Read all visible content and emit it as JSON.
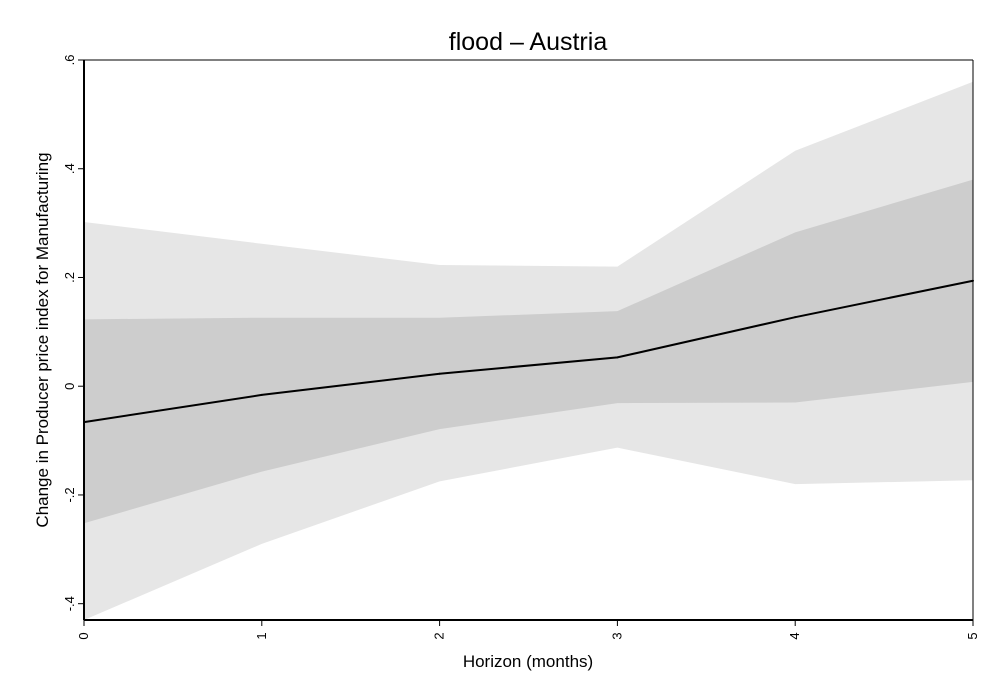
{
  "chart_data": {
    "type": "line",
    "title": "flood – Austria",
    "xlabel": "Horizon (months)",
    "ylabel": "Change in Producer price index for Manufacturing",
    "xlim": [
      0,
      5
    ],
    "ylim": [
      -0.43,
      0.6
    ],
    "x_ticks": [
      0,
      1,
      2,
      3,
      4,
      5
    ],
    "x_tick_labels": [
      "0",
      "1",
      "2",
      "3",
      "4",
      "5"
    ],
    "y_ticks": [
      -0.4,
      -0.2,
      0,
      0.2,
      0.4,
      0.6
    ],
    "y_tick_labels": [
      "-.4",
      "-.2",
      "0",
      ".2",
      ".4",
      ".6"
    ],
    "grid": false,
    "series": [
      {
        "role": "outer-band",
        "color": "#e6e6e6",
        "x": [
          0,
          1,
          2,
          3,
          4,
          5
        ],
        "lower": [
          -0.43,
          -0.29,
          -0.175,
          -0.113,
          -0.18,
          -0.173
        ],
        "upper": [
          0.302,
          0.262,
          0.223,
          0.22,
          0.433,
          0.56
        ]
      },
      {
        "role": "inner-band",
        "color": "#cdcdcd",
        "x": [
          0,
          1,
          2,
          3,
          4,
          5
        ],
        "lower": [
          -0.252,
          -0.157,
          -0.079,
          -0.031,
          -0.03,
          0.008
        ],
        "upper": [
          0.123,
          0.126,
          0.126,
          0.138,
          0.283,
          0.38
        ]
      },
      {
        "role": "point-estimate",
        "color": "#000000",
        "x": [
          0,
          1,
          2,
          3,
          4,
          5
        ],
        "values": [
          -0.066,
          -0.016,
          0.023,
          0.053,
          0.127,
          0.194
        ]
      }
    ]
  }
}
